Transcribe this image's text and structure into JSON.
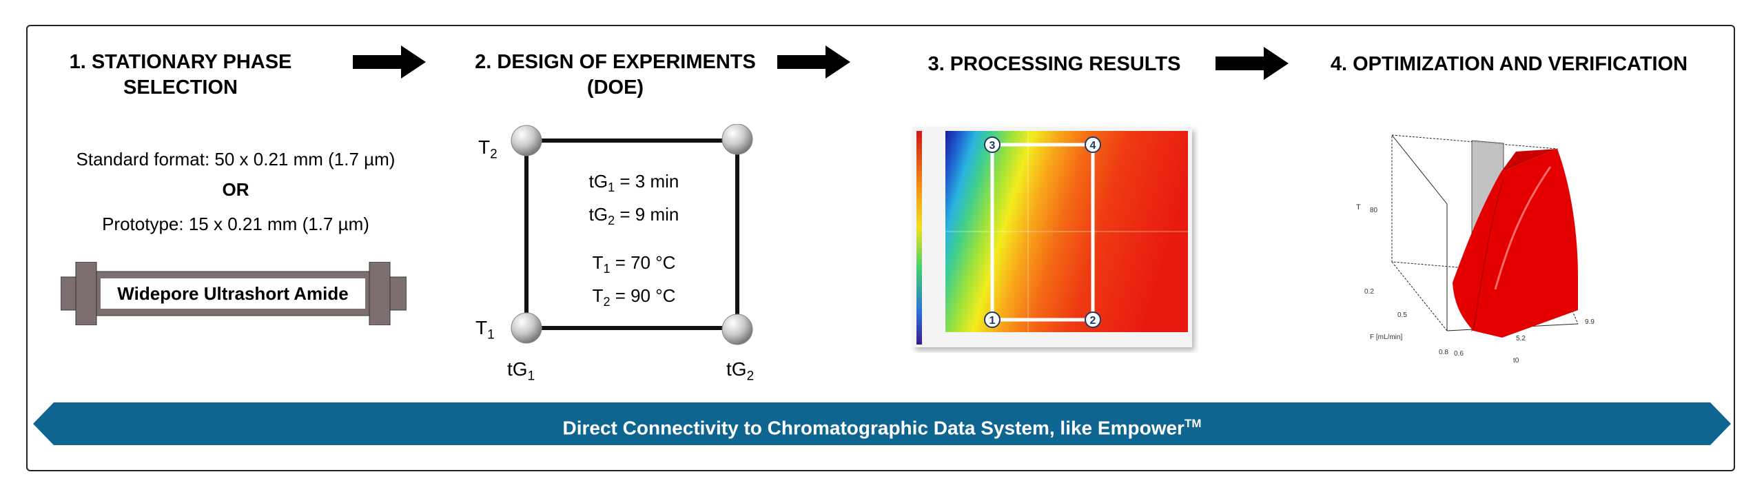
{
  "steps": [
    {
      "title_line1": "1. STATIONARY PHASE",
      "title_line2": "SELECTION"
    },
    {
      "title_line1": "2. DESIGN OF EXPERIMENTS",
      "title_line2": "(DOE)"
    },
    {
      "title_line1": "3. PROCESSING RESULTS"
    },
    {
      "title_line1": "4. OPTIMIZATION AND VERIFICATION"
    }
  ],
  "column_info": {
    "standard_format": "Standard format: 50 x 0.21 mm (1.7 µm)",
    "or": "OR",
    "prototype": "Prototype: 15 x 0.21 mm (1.7 µm)",
    "column_label": "Widepore Ultrashort Amide"
  },
  "doe": {
    "t2_label": "T",
    "t2_sub": "2",
    "t1_label": "T",
    "t1_sub": "1",
    "tg1_label": "tG",
    "tg1_sub": "1",
    "tg2_label": "tG",
    "tg2_sub": "2",
    "tg1_value_prefix": "tG",
    "tg1_value_sub": "1",
    "tg1_value_suffix": " = 3 min",
    "tg2_value_prefix": "tG",
    "tg2_value_sub": "2",
    "tg2_value_suffix": " = 9 min",
    "t1_value_prefix": "T",
    "t1_value_sub": "1",
    "t1_value_suffix": " = 70 °C",
    "t2_value_prefix": "T",
    "t2_value_sub": "2",
    "t2_value_suffix": " = 90 °C"
  },
  "heatmap": {
    "corner_labels": [
      "1",
      "2",
      "3",
      "4"
    ]
  },
  "surface": {
    "axis_t": "T",
    "tick_80": "80",
    "tick_02": "0.2",
    "tick_05": "0.5",
    "tick_08a": "0.8",
    "tick_06": "0.6",
    "tick_52": "5.2",
    "tick_99": "9.9",
    "axis_f": "F [mL/min]",
    "axis_t0": "t0"
  },
  "banner": {
    "text": "Direct Connectivity to Chromatographic Data System, like Empower",
    "tm": "TM"
  },
  "colors": {
    "banner": "#0e6590",
    "surface_red": "#e50000",
    "column_gray": "#7d6f6f"
  }
}
